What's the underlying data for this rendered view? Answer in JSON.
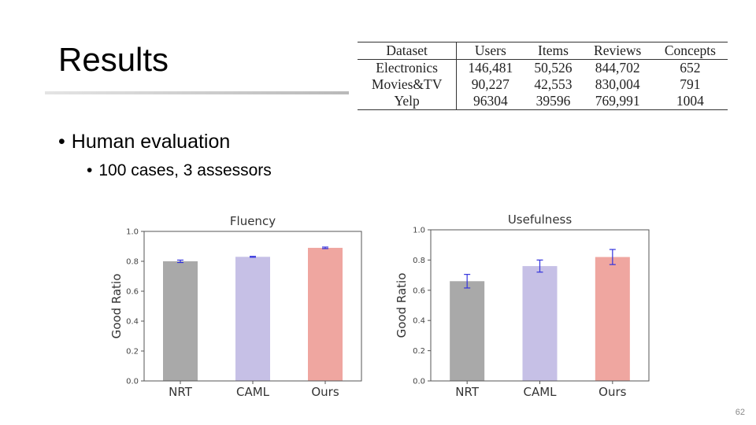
{
  "slide": {
    "title": "Results",
    "bullets": [
      "Human evaluation",
      "100 cases, 3 assessors"
    ],
    "page_number": "62"
  },
  "dataset_table": {
    "headers": [
      "Dataset",
      "Users",
      "Items",
      "Reviews",
      "Concepts"
    ],
    "rows": [
      [
        "Electronics",
        "146,481",
        "50,526",
        "844,702",
        "652"
      ],
      [
        "Movies&TV",
        "90,227",
        "42,553",
        "830,004",
        "791"
      ],
      [
        "Yelp",
        "96304",
        "39596",
        "769,991",
        "1004"
      ]
    ]
  },
  "chart_data": [
    {
      "type": "bar",
      "title": "Fluency",
      "xlabel": "",
      "ylabel": "Good Ratio",
      "ylim": [
        0,
        1.0
      ],
      "yticks": [
        "0.0",
        "0.2",
        "0.4",
        "0.6",
        "0.8",
        "1.0"
      ],
      "categories": [
        "NRT",
        "CAML",
        "Ours"
      ],
      "values": [
        0.8,
        0.83,
        0.89
      ],
      "errors": [
        0.008,
        0.003,
        0.005
      ],
      "colors": [
        "#a9a9a9",
        "#c6c0e6",
        "#efa6a0"
      ],
      "error_color": "#3333dd",
      "frame_color": "#555555"
    },
    {
      "type": "bar",
      "title": "Usefulness",
      "xlabel": "",
      "ylabel": "Good Ratio",
      "ylim": [
        0,
        1.0
      ],
      "yticks": [
        "0.0",
        "0.2",
        "0.4",
        "0.6",
        "0.8",
        "1.0"
      ],
      "categories": [
        "NRT",
        "CAML",
        "Ours"
      ],
      "values": [
        0.66,
        0.76,
        0.82
      ],
      "errors": [
        0.045,
        0.04,
        0.05
      ],
      "colors": [
        "#a9a9a9",
        "#c6c0e6",
        "#efa6a0"
      ],
      "error_color": "#3333dd",
      "frame_color": "#555555"
    }
  ]
}
